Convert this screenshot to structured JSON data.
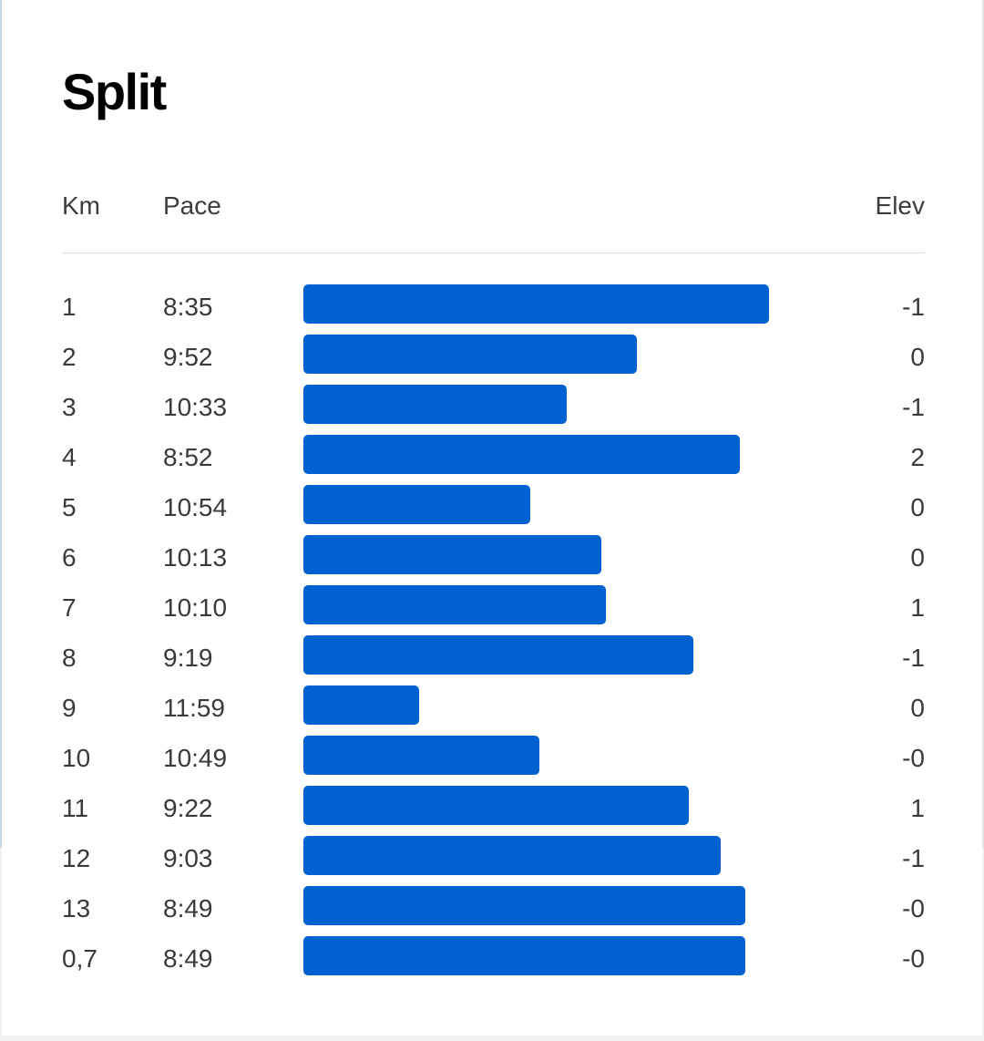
{
  "title": "Split",
  "columns": {
    "km": "Km",
    "pace": "Pace",
    "elev": "Elev"
  },
  "colors": {
    "bar": "#0061d1",
    "background": "#ffffff",
    "text": "#3a3a3a",
    "title": "#000000"
  },
  "chart_data": {
    "type": "bar",
    "orientation": "horizontal",
    "title": "Split",
    "categories": [
      "1",
      "2",
      "3",
      "4",
      "5",
      "6",
      "7",
      "8",
      "9",
      "10",
      "11",
      "12",
      "13",
      "0,7"
    ],
    "pace_labels": [
      "8:35",
      "9:52",
      "10:33",
      "8:52",
      "10:54",
      "10:13",
      "10:10",
      "9:19",
      "11:59",
      "10:49",
      "9:22",
      "9:03",
      "8:49",
      "8:49"
    ],
    "pace_seconds_per_km": [
      515,
      592,
      633,
      532,
      654,
      613,
      610,
      559,
      719,
      649,
      562,
      543,
      529,
      529
    ],
    "elev_labels": [
      "-1",
      "0",
      "-1",
      "2",
      "0",
      "0",
      "1",
      "-1",
      "0",
      "-0",
      "1",
      "-1",
      "-0",
      "-0"
    ],
    "grid": false,
    "legend": "none"
  }
}
